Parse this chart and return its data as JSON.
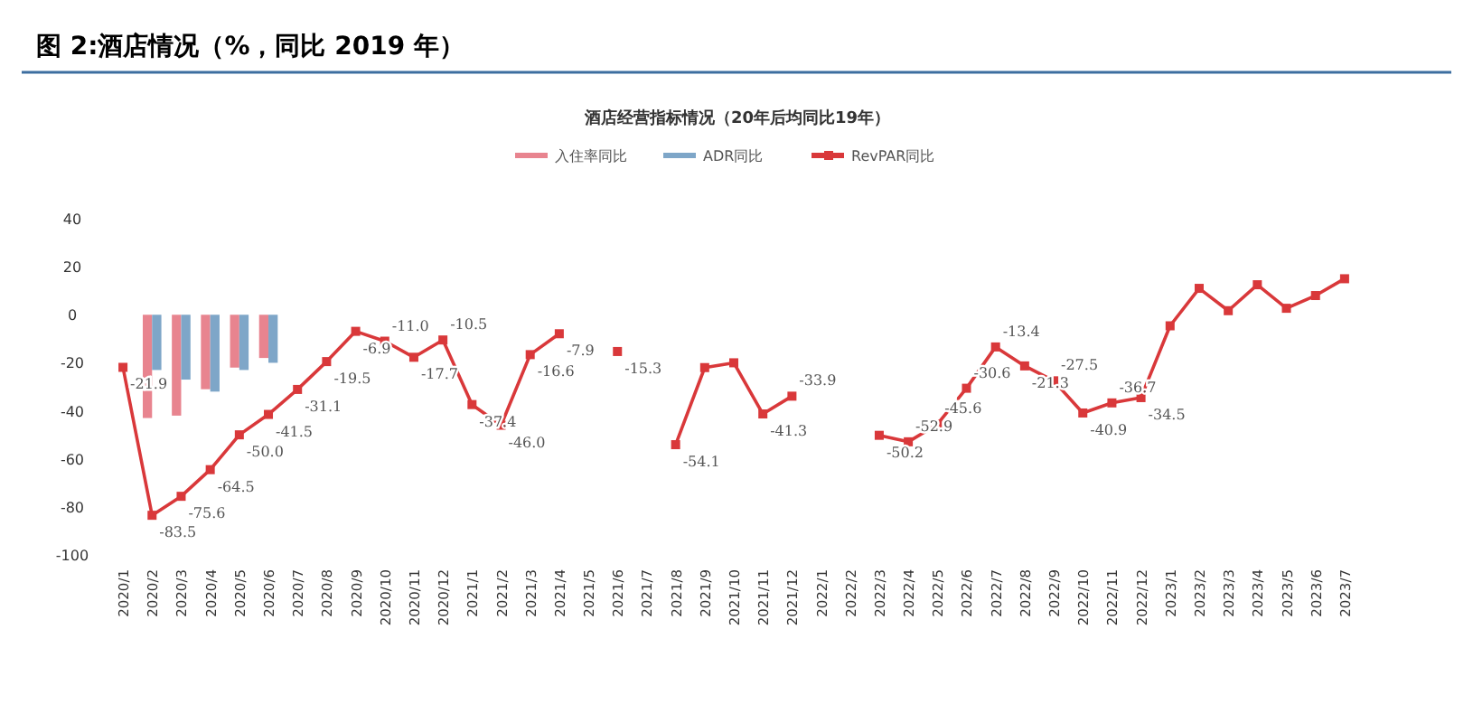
{
  "chart_data": {
    "type": "bar",
    "title": "图 2:酒店情况（%，同比 2019 年）",
    "subtitle": "酒店经营指标情况（20年后均同比19年）",
    "categories": [
      "2020/1",
      "2020/2",
      "2020/3",
      "2020/4",
      "2020/5",
      "2020/6",
      "2020/7",
      "2020/8",
      "2020/9",
      "2020/10",
      "2020/11",
      "2020/12",
      "2021/1",
      "2021/2",
      "2021/3",
      "2021/4",
      "2021/5",
      "2021/6",
      "2021/7",
      "2021/8",
      "2021/9",
      "2021/10",
      "2021/11",
      "2021/12",
      "2022/1",
      "2022/2",
      "2022/3",
      "2022/4",
      "2022/5",
      "2022/6",
      "2022/7",
      "2022/8",
      "2022/9",
      "2022/10",
      "2022/11",
      "2022/12",
      "2023/1",
      "2023/2",
      "2023/3",
      "2023/4",
      "2023/5",
      "2023/6",
      "2023/7"
    ],
    "ylim": [
      -100,
      40
    ],
    "yticks": [
      -100,
      -80,
      -60,
      -40,
      -20,
      0,
      20,
      40
    ],
    "legend": "top",
    "grid": false,
    "series": [
      {
        "name": "入住率同比",
        "color": "#e8848f",
        "values": [
          null,
          -43,
          -42,
          -31,
          -22,
          -18,
          null,
          null,
          null,
          null,
          null,
          null,
          null,
          null,
          null,
          null,
          null,
          null,
          null,
          null,
          null,
          null,
          null,
          null,
          null,
          null,
          null,
          null,
          null,
          null,
          null,
          null,
          null,
          null,
          null,
          null,
          null,
          null,
          null,
          null,
          null,
          null,
          null
        ]
      },
      {
        "name": "ADR同比",
        "color": "#7ea6c8",
        "values": [
          null,
          -23,
          -27,
          -32,
          -23,
          -20,
          null,
          null,
          null,
          null,
          null,
          null,
          null,
          null,
          null,
          null,
          null,
          null,
          null,
          null,
          null,
          null,
          null,
          null,
          null,
          null,
          null,
          null,
          null,
          null,
          null,
          null,
          null,
          null,
          null,
          null,
          null,
          null,
          null,
          null,
          null,
          null,
          null
        ]
      },
      {
        "name": "RevPAR同比",
        "type": "line",
        "color": "#d9383a",
        "marker": "square",
        "values": [
          -21.9,
          -83.5,
          -75.6,
          -64.5,
          -50.0,
          -41.5,
          -31.1,
          -19.5,
          -6.9,
          -11.0,
          -17.7,
          -10.5,
          -37.4,
          -46.0,
          -16.6,
          -7.9,
          null,
          -15.3,
          null,
          -54.1,
          -22,
          -20,
          -41.3,
          -33.9,
          null,
          null,
          -50.2,
          -52.9,
          -45.6,
          -30.6,
          -13.4,
          -21.3,
          -27.5,
          -40.9,
          -36.7,
          -34.5,
          -4.6,
          11,
          1.7,
          12.5,
          2.7,
          8.0,
          15.0
        ],
        "value_labels": [
          "-21.9",
          "-83.5",
          "-75.6",
          "-64.5",
          "-50.0",
          "-41.5",
          "-31.1",
          "-19.5",
          "-6.9",
          "-11.0",
          "-17.7",
          "-10.5",
          "-37.4",
          "-46.0",
          "-16.6",
          "-7.9",
          null,
          "-15.3",
          null,
          "-54.1",
          null,
          null,
          "-41.3",
          "-33.9",
          null,
          null,
          "-50.2",
          "-52.9",
          "-45.6",
          "-30.6",
          "-13.4",
          "-21.3",
          "-27.5",
          "-40.9",
          "-36.7",
          "-34.5",
          null,
          null,
          null,
          null,
          null,
          null,
          null
        ]
      }
    ]
  }
}
